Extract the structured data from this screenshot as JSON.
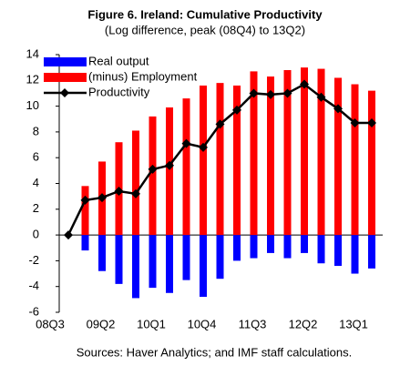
{
  "chart_data": {
    "type": "bar-line",
    "title": "Figure 6. Ireland: Cumulative Productivity",
    "subtitle": "(Log difference, peak (08Q4) to 13Q2)",
    "source": "Sources: Haver Analytics; and IMF staff calculations.",
    "categories": [
      "08Q3",
      null,
      null,
      "09Q2",
      null,
      null,
      "10Q1",
      null,
      null,
      "10Q4",
      null,
      null,
      "11Q3",
      null,
      null,
      "12Q2",
      null,
      null,
      "13Q1"
    ],
    "series": [
      {
        "name": "Real output",
        "type": "bar",
        "color": "#0000ff",
        "values": [
          0,
          -1.2,
          -2.8,
          -3.8,
          -4.9,
          -4.1,
          -4.5,
          -3.5,
          -4.8,
          -3.4,
          -2.0,
          -1.8,
          -1.4,
          -1.8,
          -1.4,
          -2.2,
          -2.4,
          -3.0,
          -2.6
        ]
      },
      {
        "name": "(minus) Employment",
        "type": "bar",
        "color": "#ff0000",
        "values": [
          0,
          3.8,
          5.7,
          7.2,
          8.1,
          9.2,
          9.9,
          10.6,
          11.6,
          11.8,
          11.6,
          12.7,
          12.3,
          12.8,
          13.0,
          12.9,
          12.2,
          11.7,
          11.2
        ]
      },
      {
        "name": "Productivity",
        "type": "line",
        "color": "#000000",
        "values": [
          0,
          2.7,
          2.9,
          3.4,
          3.2,
          5.1,
          5.4,
          7.1,
          6.8,
          8.6,
          9.7,
          11.0,
          10.9,
          11.0,
          11.7,
          10.7,
          9.8,
          8.7,
          8.7
        ]
      }
    ],
    "ylim": [
      -6,
      14
    ],
    "yticks": [
      -6,
      -4,
      -2,
      0,
      2,
      4,
      6,
      8,
      10,
      12,
      14
    ],
    "legend": "top-left",
    "grid": false
  }
}
